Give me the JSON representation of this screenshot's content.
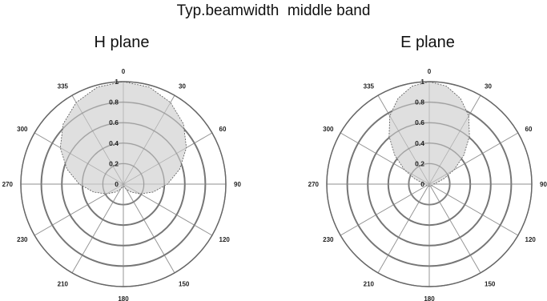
{
  "page": {
    "title": "Typ.beamwidth  middle band"
  },
  "chart_data": [
    {
      "type": "polar",
      "title": "H plane",
      "angle_labels": [
        "0",
        "30",
        "60",
        "90",
        "120",
        "150",
        "180",
        "210",
        "230",
        "270",
        "300",
        "335"
      ],
      "radial_ticks": [
        "0",
        "0.2",
        "0.4",
        "0.6",
        "0.8",
        "1"
      ],
      "rlim": [
        0,
        1
      ],
      "grid": true,
      "fill_color": "#d9d9d9",
      "series": [
        {
          "angles_deg": [
            0,
            15,
            30,
            45,
            60,
            75,
            90,
            105,
            120,
            135,
            150,
            165,
            180,
            195,
            210,
            225,
            240,
            255,
            270,
            285,
            300,
            315,
            330,
            345
          ],
          "values": [
            1.0,
            0.98,
            0.92,
            0.83,
            0.71,
            0.57,
            0.43,
            0.3,
            0.19,
            0.11,
            0.06,
            0.03,
            0.02,
            0.03,
            0.06,
            0.11,
            0.19,
            0.3,
            0.43,
            0.57,
            0.71,
            0.83,
            0.92,
            0.98
          ]
        }
      ]
    },
    {
      "type": "polar",
      "title": "E plane",
      "angle_labels": [
        "0",
        "30",
        "60",
        "90",
        "120",
        "150",
        "180",
        "210",
        "230",
        "270",
        "300",
        "335"
      ],
      "radial_ticks": [
        "0",
        "0.2",
        "0.4",
        "0.6",
        "0.8",
        "1"
      ],
      "rlim": [
        0,
        1
      ],
      "grid": true,
      "fill_color": "#d9d9d9",
      "series": [
        {
          "angles_deg": [
            0,
            10,
            20,
            30,
            40,
            50,
            60,
            70,
            80,
            90,
            120,
            150,
            180,
            210,
            240,
            270,
            280,
            290,
            300,
            310,
            320,
            330,
            340,
            350
          ],
          "values": [
            1.0,
            0.97,
            0.89,
            0.77,
            0.61,
            0.44,
            0.28,
            0.15,
            0.07,
            0.04,
            0.03,
            0.02,
            0.02,
            0.02,
            0.03,
            0.04,
            0.07,
            0.15,
            0.28,
            0.44,
            0.61,
            0.77,
            0.89,
            0.97
          ]
        }
      ]
    }
  ]
}
